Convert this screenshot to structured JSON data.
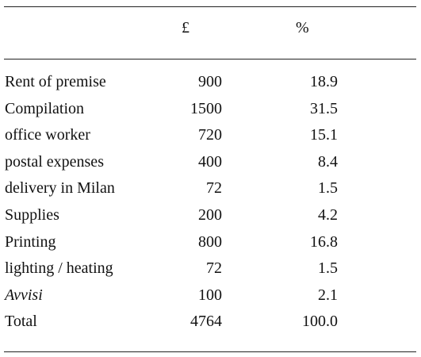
{
  "table": {
    "header": [
      "",
      "£",
      "%"
    ],
    "rows": [
      [
        "Rent of premise",
        "900",
        "18.9"
      ],
      [
        "Compilation",
        "1500",
        "31.5"
      ],
      [
        "office worker",
        "720",
        "15.1"
      ],
      [
        "postal expenses",
        "400",
        "8.4"
      ],
      [
        "delivery in Milan",
        "72",
        "1.5"
      ],
      [
        "Supplies",
        "200",
        "4.2"
      ],
      [
        "Printing",
        "800",
        "16.8"
      ],
      [
        "lighting / heating",
        "72",
        "1.5"
      ],
      [
        "Avvisi",
        "100",
        "2.1"
      ],
      [
        "Total",
        "4764",
        "100.0"
      ]
    ]
  }
}
